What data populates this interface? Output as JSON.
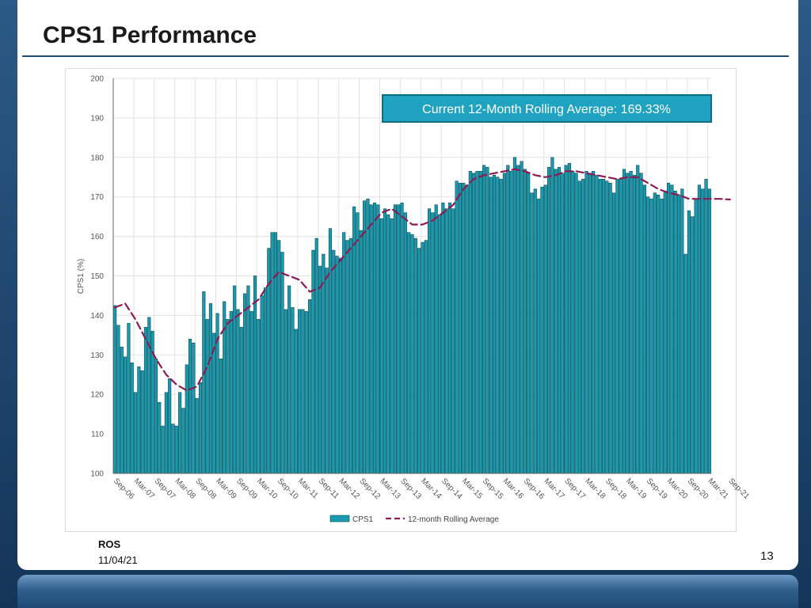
{
  "slide": {
    "title": "CPS1 Performance",
    "footer_org": "ROS",
    "footer_date": "11/04/21",
    "page_number": "13"
  },
  "colors": {
    "bar": "#1a9aae",
    "bar_edge": "#0b4d57",
    "rolling": "#8b1a55",
    "title_rule": "#1f4e6e",
    "callout_fill": "#1fa3c0",
    "callout_border": "#0e6d84"
  },
  "chart_data": {
    "type": "bar",
    "ylabel": "CPS1 (%)",
    "ylim": [
      100,
      200
    ],
    "yticks": [
      100,
      110,
      120,
      130,
      140,
      150,
      160,
      170,
      180,
      190,
      200
    ],
    "x_start": "2006-09",
    "x_end": "2021-09",
    "xtick_labels": [
      "Sep-06",
      "Mar-07",
      "Sep-07",
      "Mar-08",
      "Sep-08",
      "Mar-09",
      "Sep-09",
      "Mar-10",
      "Sep-10",
      "Mar-11",
      "Sep-11",
      "Mar-12",
      "Sep-12",
      "Mar-13",
      "Sep-13",
      "Mar-14",
      "Sep-14",
      "Mar-15",
      "Sep-15",
      "Mar-16",
      "Sep-16",
      "Mar-17",
      "Sep-17",
      "Mar-18",
      "Sep-18",
      "Mar-19",
      "Sep-19",
      "Mar-20",
      "Sep-20",
      "Mar-21",
      "Sep-21"
    ],
    "grid": true,
    "legend_position": "bottom-center",
    "annotation": "Current 12-Month Rolling Average: 169.33%",
    "series": [
      {
        "name": "CPS1",
        "type": "bar",
        "values": [
          142.5,
          137.5,
          132,
          129.5,
          138,
          128,
          120.5,
          127,
          126,
          137,
          139.5,
          136,
          129,
          118,
          112,
          120.5,
          124,
          112.5,
          112,
          120.5,
          116.5,
          127.5,
          134,
          133,
          119,
          123,
          146,
          139,
          143,
          135.5,
          140.5,
          129,
          143.5,
          139,
          141,
          147.5,
          141.5,
          137,
          145.5,
          147.5,
          141,
          150,
          139,
          145,
          147,
          157,
          161,
          161,
          159,
          156,
          141.5,
          147.5,
          142,
          136.5,
          141.5,
          141.5,
          141,
          144,
          156.5,
          159.5,
          152.5,
          155.5,
          152,
          162,
          156.5,
          155,
          154.5,
          161,
          159,
          159.5,
          167.5,
          166,
          161.5,
          169,
          169.5,
          168,
          168.5,
          168,
          164.5,
          167,
          165.5,
          164.5,
          168,
          168,
          168.5,
          166,
          161,
          160.5,
          159.5,
          157,
          158.5,
          159,
          167,
          166,
          168,
          165.5,
          168.5,
          167,
          168.5,
          167,
          174,
          173.5,
          173.5,
          173,
          176.5,
          176,
          176.5,
          176.5,
          178,
          177.5,
          175,
          175.5,
          175,
          174.5,
          176,
          178,
          176.5,
          180,
          178,
          179,
          177,
          176,
          171,
          172,
          169.5,
          172.5,
          173,
          177.5,
          180,
          177,
          177.5,
          176,
          178,
          178.5,
          176.5,
          176,
          174,
          174.5,
          176.5,
          176,
          176.5,
          175.5,
          174.5,
          174.5,
          174,
          173.5,
          171,
          174.5,
          174.5,
          177,
          176,
          176.5,
          175.5,
          178,
          176,
          173,
          170,
          169.5,
          171,
          170.5,
          169.5,
          171.5,
          173.5,
          173,
          171.5,
          170.5,
          172,
          155.5,
          166.5,
          165,
          169.5,
          173,
          172,
          174.5,
          172
        ]
      },
      {
        "name": "12-month Rolling Average",
        "type": "line",
        "points": [
          [
            0,
            142
          ],
          [
            3,
            143
          ],
          [
            6,
            139
          ],
          [
            9,
            134
          ],
          [
            12,
            129
          ],
          [
            15,
            125
          ],
          [
            18,
            122.5
          ],
          [
            21,
            121
          ],
          [
            24,
            122
          ],
          [
            27,
            127
          ],
          [
            30,
            134
          ],
          [
            33,
            138
          ],
          [
            36,
            140
          ],
          [
            39,
            142
          ],
          [
            42,
            144
          ],
          [
            45,
            148
          ],
          [
            48,
            151
          ],
          [
            51,
            150
          ],
          [
            54,
            149
          ],
          [
            57,
            146
          ],
          [
            60,
            147
          ],
          [
            63,
            151
          ],
          [
            66,
            154
          ],
          [
            69,
            157
          ],
          [
            72,
            160
          ],
          [
            75,
            163
          ],
          [
            78,
            166
          ],
          [
            81,
            167
          ],
          [
            84,
            165
          ],
          [
            87,
            163
          ],
          [
            90,
            163
          ],
          [
            93,
            164
          ],
          [
            96,
            166
          ],
          [
            99,
            168
          ],
          [
            102,
            172
          ],
          [
            105,
            174.5
          ],
          [
            108,
            175.5
          ],
          [
            111,
            176
          ],
          [
            114,
            176.5
          ],
          [
            117,
            177
          ],
          [
            120,
            176.5
          ],
          [
            123,
            175.5
          ],
          [
            126,
            175
          ],
          [
            129,
            175.5
          ],
          [
            132,
            176.5
          ],
          [
            135,
            176.5
          ],
          [
            138,
            176
          ],
          [
            141,
            175.5
          ],
          [
            144,
            175
          ],
          [
            147,
            174.5
          ],
          [
            150,
            175
          ],
          [
            153,
            175
          ],
          [
            156,
            173.5
          ],
          [
            159,
            172
          ],
          [
            162,
            171
          ],
          [
            165,
            170.5
          ],
          [
            168,
            169.5
          ],
          [
            171,
            169.5
          ],
          [
            174,
            169.5
          ],
          [
            177,
            169.5
          ],
          [
            180,
            169.33
          ]
        ]
      }
    ]
  }
}
